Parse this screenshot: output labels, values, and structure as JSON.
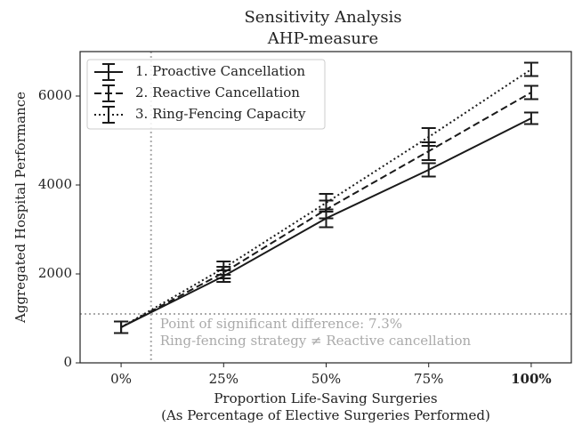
{
  "chart_data": {
    "type": "line_errorbar",
    "title": [
      "Sensitivity Analysis",
      "AHP-measure"
    ],
    "x_label": [
      "Proportion Life-Saving Surgeries",
      "(As Percentage of Elective Surgeries Performed)"
    ],
    "y_label": "Aggregated Hospital Performance",
    "x": [
      0,
      25,
      50,
      75,
      100
    ],
    "xlim": [
      -10,
      110
    ],
    "xticks": [
      {
        "value": 0,
        "label": "0%"
      },
      {
        "value": 25,
        "label": "25%"
      },
      {
        "value": 50,
        "label": "50%"
      },
      {
        "value": 75,
        "label": "75%"
      },
      {
        "value": 100,
        "label": "100%"
      }
    ],
    "highlight_xtick": 100,
    "ylim": [
      0,
      7000
    ],
    "yticks": [
      0,
      2000,
      4000,
      6000
    ],
    "legend": "upper left",
    "series": [
      {
        "name": "1. Proactive Cancellation",
        "color": "#1a1a1a",
        "linestyle": "solid",
        "values": [
          800,
          1950,
          3250,
          4340,
          5500
        ],
        "errors": [
          130,
          130,
          200,
          150,
          130
        ]
      },
      {
        "name": "2. Reactive Cancellation",
        "color": "#1a1a1a",
        "linestyle": "dashed",
        "values": [
          800,
          2030,
          3450,
          4760,
          6080
        ],
        "errors": [
          130,
          130,
          200,
          200,
          150
        ]
      },
      {
        "name": "3. Ring-Fencing Capacity",
        "color": "#1a1a1a",
        "linestyle": "dotted",
        "values": [
          800,
          2130,
          3600,
          5080,
          6600
        ],
        "errors": [
          130,
          150,
          200,
          200,
          150
        ]
      }
    ],
    "reference": {
      "color": "#aaaaaa",
      "x": 7.3,
      "y": 1100,
      "annotation": [
        "Point of significant difference: 7.3%",
        "Ring-fencing strategy ≠ Reactive cancellation"
      ]
    }
  }
}
